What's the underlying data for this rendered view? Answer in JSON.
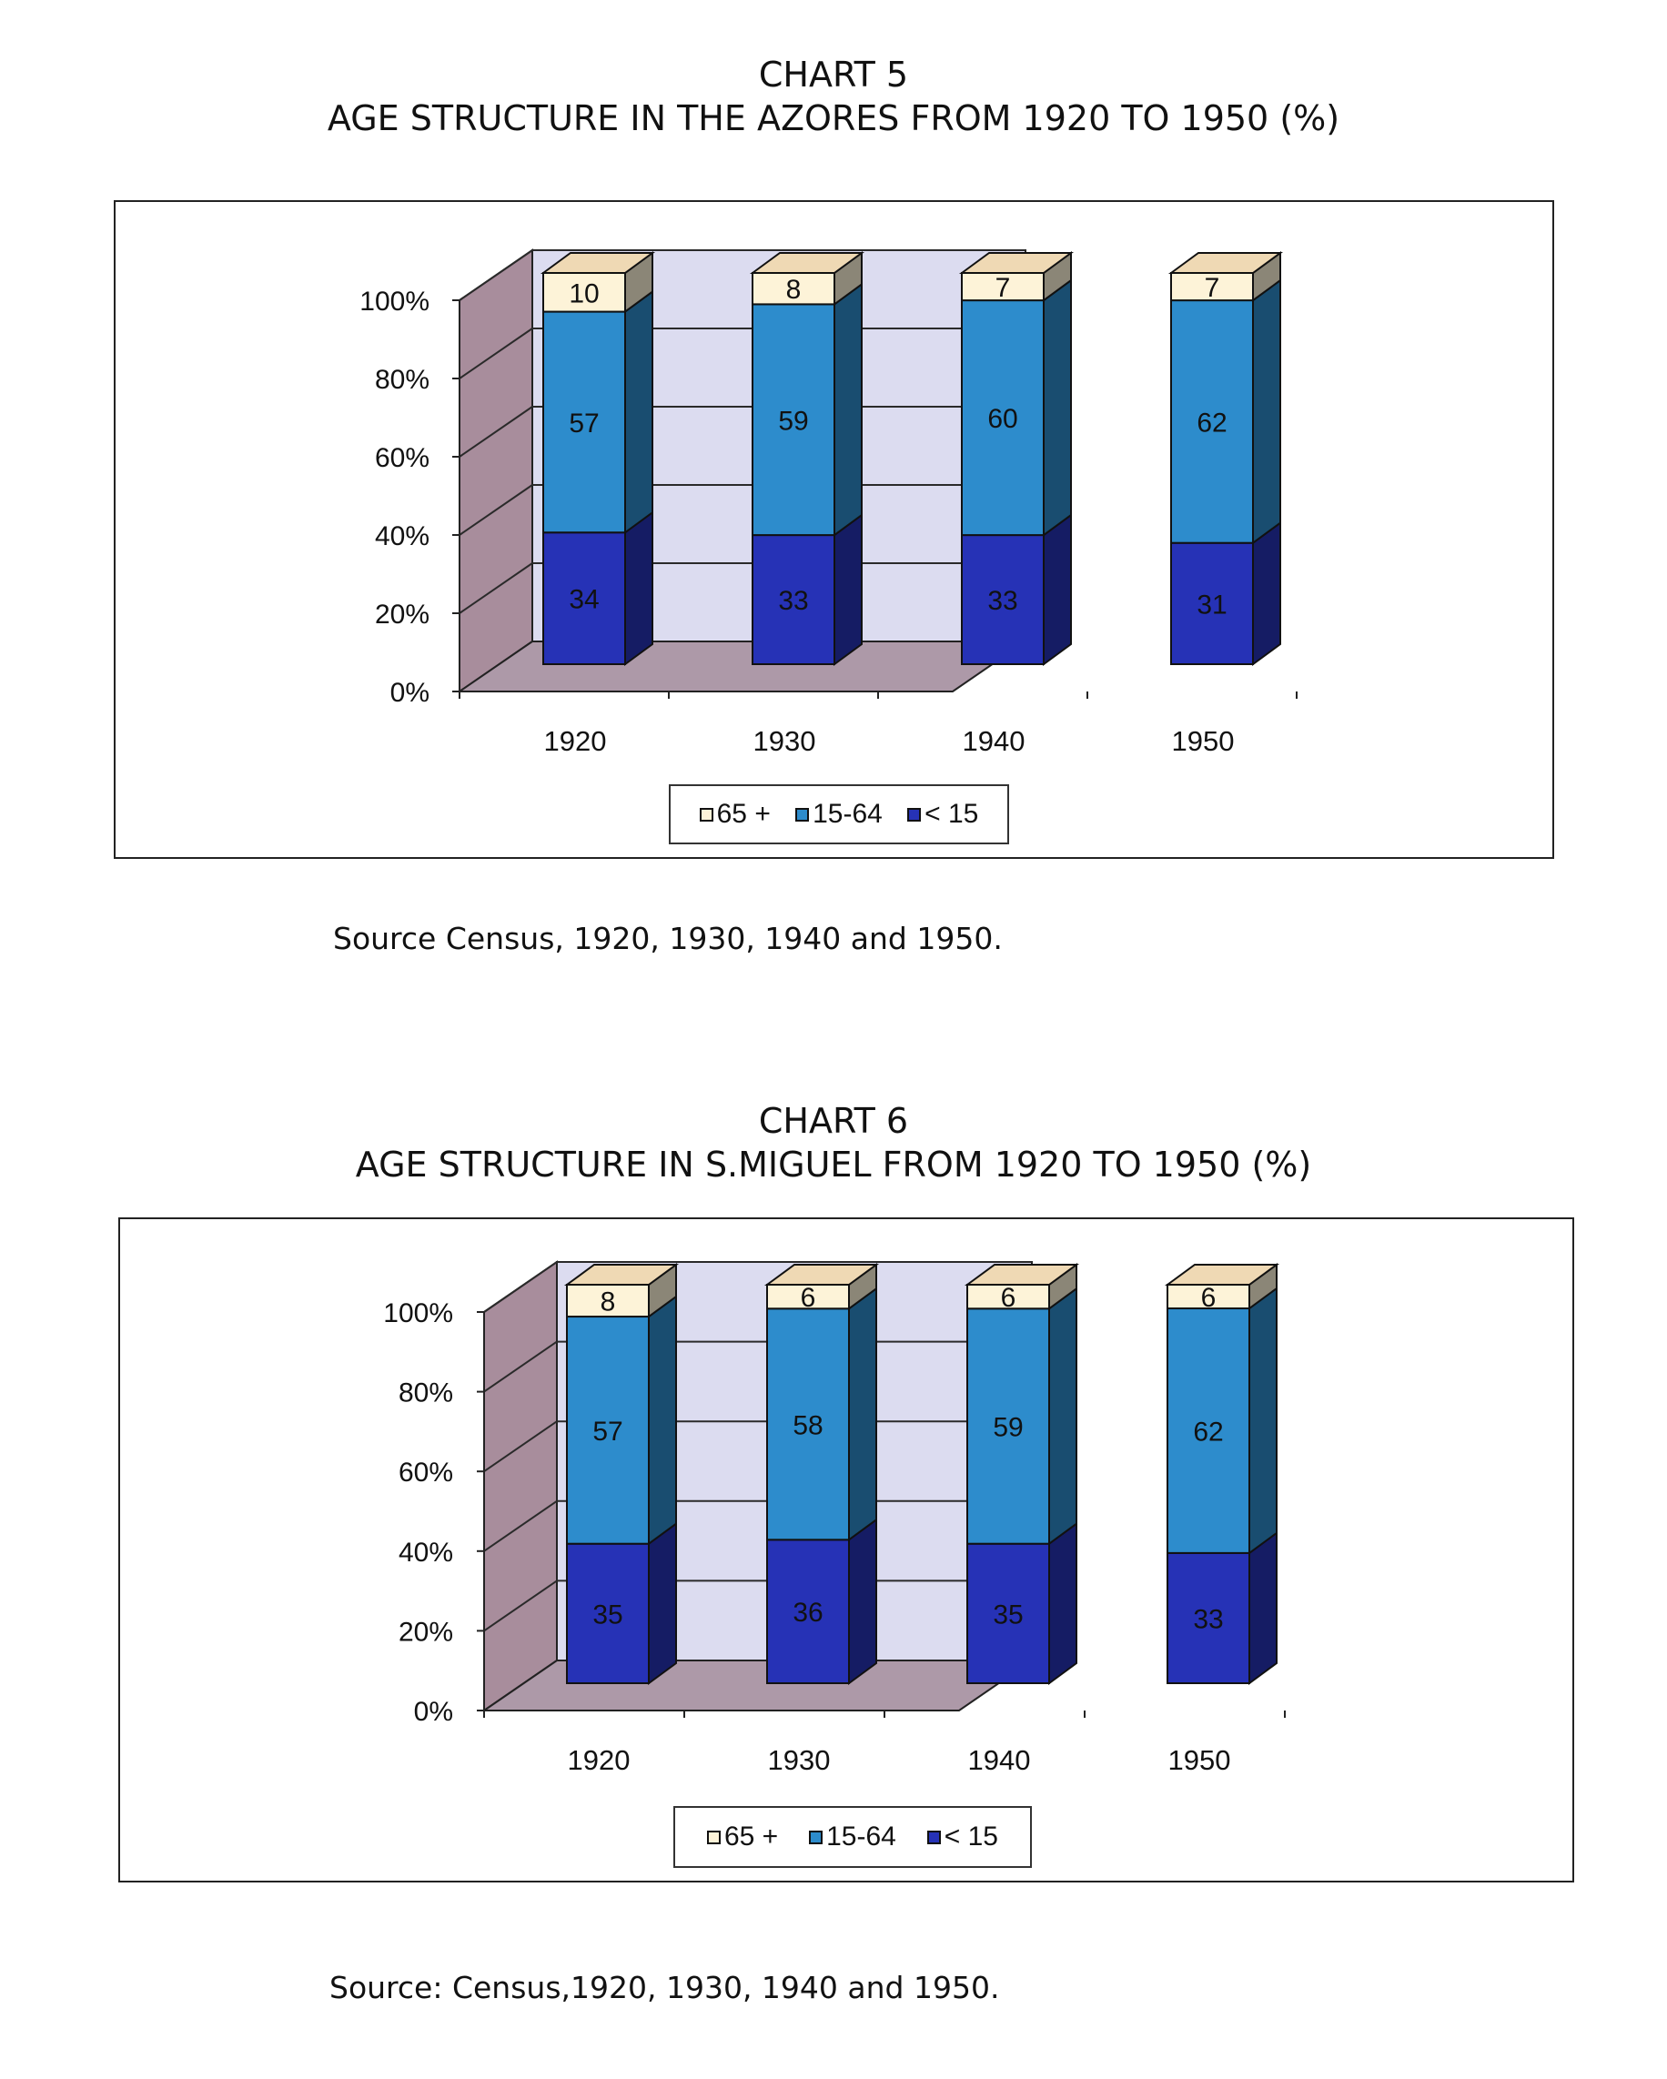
{
  "colors": {
    "back_wall": "#dcdcf0",
    "side_wall": "#a88d9c",
    "floor": "#ad99a8",
    "grid": "#2a2a2a",
    "seg_top": "#fdf3d8",
    "seg_mid": "#2d8ccc",
    "seg_bot": "#2632b6"
  },
  "legend_items": [
    {
      "label": "65 +",
      "color": "#fdf3d8"
    },
    {
      "label": "15-64",
      "color": "#2d8ccc"
    },
    {
      "label": "< 15",
      "color": "#2632b6"
    }
  ],
  "chart_data": [
    {
      "type": "bar",
      "stacked": true,
      "title_line1": "CHART 5",
      "title_line2": "AGE STRUCTURE IN THE AZORES FROM 1920 TO 1950 (%)",
      "categories": [
        "1920",
        "1930",
        "1940",
        "1950"
      ],
      "series": [
        {
          "name": "< 15",
          "values": [
            34,
            33,
            33,
            31
          ]
        },
        {
          "name": "15-64",
          "values": [
            57,
            59,
            60,
            62
          ]
        },
        {
          "name": "65 +",
          "values": [
            10,
            8,
            7,
            7
          ]
        }
      ],
      "y_ticks": [
        "0%",
        "20%",
        "40%",
        "60%",
        "80%",
        "100%"
      ],
      "ylim": [
        0,
        100
      ],
      "grid": true,
      "legend_position": "bottom",
      "source": "Source Census, 1920, 1930, 1940 and 1950."
    },
    {
      "type": "bar",
      "stacked": true,
      "title_line1": "CHART 6",
      "title_line2": "AGE STRUCTURE IN S.MIGUEL FROM 1920 TO 1950 (%)",
      "categories": [
        "1920",
        "1930",
        "1940",
        "1950"
      ],
      "series": [
        {
          "name": "< 15",
          "values": [
            35,
            36,
            35,
            33
          ]
        },
        {
          "name": "15-64",
          "values": [
            57,
            58,
            59,
            62
          ]
        },
        {
          "name": "65 +",
          "values": [
            8,
            6,
            6,
            6
          ]
        }
      ],
      "y_ticks": [
        "0%",
        "20%",
        "40%",
        "60%",
        "80%",
        "100%"
      ],
      "ylim": [
        0,
        100
      ],
      "grid": true,
      "legend_position": "bottom",
      "source": "Source: Census,1920, 1930, 1940 and 1950."
    }
  ]
}
